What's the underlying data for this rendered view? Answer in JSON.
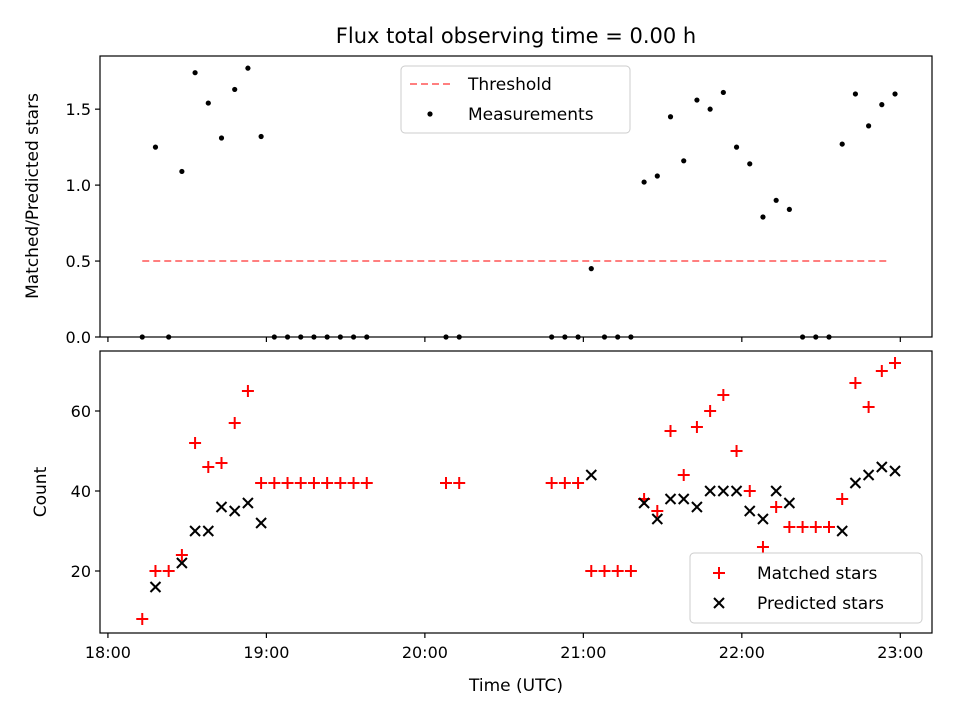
{
  "chart_data": [
    {
      "type": "scatter",
      "title": "Flux total observing time = 0.00 h",
      "xlabel": "",
      "ylabel": "Matched/Predicted stars",
      "ylim": [
        0,
        1.85
      ],
      "yticks": [
        0.0,
        0.5,
        1.0,
        1.5
      ],
      "ytick_labels": [
        "0.0",
        "0.5",
        "1.0",
        "1.5"
      ],
      "xlim_hours": [
        17.95,
        23.2
      ],
      "legend": {
        "placement": "top-center",
        "entries": [
          {
            "label": "Threshold",
            "color": "#ff7f7f",
            "marker": "dashed-line"
          },
          {
            "label": "Measurements",
            "color": "#000000",
            "marker": "dot"
          }
        ]
      },
      "threshold": {
        "name": "Threshold",
        "value": 0.5,
        "x_start": "18:13",
        "x_end": "22:55",
        "color": "#ff7f7f"
      },
      "series": [
        {
          "name": "Measurements",
          "color": "#000000",
          "points": [
            [
              "18:13",
              0
            ],
            [
              "18:18",
              1.25
            ],
            [
              "18:23",
              0
            ],
            [
              "18:28",
              1.09
            ],
            [
              "18:33",
              1.74
            ],
            [
              "18:38",
              1.54
            ],
            [
              "18:43",
              1.31
            ],
            [
              "18:48",
              1.63
            ],
            [
              "18:53",
              1.77
            ],
            [
              "18:58",
              1.32
            ],
            [
              "19:03",
              0
            ],
            [
              "19:08",
              0
            ],
            [
              "19:13",
              0
            ],
            [
              "19:18",
              0
            ],
            [
              "19:23",
              0
            ],
            [
              "19:28",
              0
            ],
            [
              "19:33",
              0
            ],
            [
              "19:38",
              0
            ],
            [
              "20:08",
              0
            ],
            [
              "20:13",
              0
            ],
            [
              "20:48",
              0
            ],
            [
              "20:53",
              0
            ],
            [
              "20:58",
              0
            ],
            [
              "21:03",
              0.45
            ],
            [
              "21:08",
              0
            ],
            [
              "21:13",
              0
            ],
            [
              "21:18",
              0
            ],
            [
              "21:23",
              1.02
            ],
            [
              "21:28",
              1.06
            ],
            [
              "21:33",
              1.45
            ],
            [
              "21:38",
              1.16
            ],
            [
              "21:43",
              1.56
            ],
            [
              "21:48",
              1.5
            ],
            [
              "21:53",
              1.61
            ],
            [
              "21:58",
              1.25
            ],
            [
              "22:03",
              1.14
            ],
            [
              "22:08",
              0.79
            ],
            [
              "22:13",
              0.9
            ],
            [
              "22:18",
              0.84
            ],
            [
              "22:23",
              0
            ],
            [
              "22:28",
              0
            ],
            [
              "22:33",
              0
            ],
            [
              "22:38",
              1.27
            ],
            [
              "22:43",
              1.6
            ],
            [
              "22:48",
              1.39
            ],
            [
              "22:53",
              1.53
            ],
            [
              "22:58",
              1.6
            ]
          ]
        }
      ]
    },
    {
      "type": "scatter",
      "title": "",
      "xlabel": "Time (UTC)",
      "ylabel": "Count",
      "ylim": [
        4.5,
        75
      ],
      "yticks": [
        20,
        40,
        60
      ],
      "ytick_labels": [
        "20",
        "40",
        "60"
      ],
      "xlim_hours": [
        17.95,
        23.2
      ],
      "xticks": [
        "18:00",
        "19:00",
        "20:00",
        "21:00",
        "22:00",
        "23:00"
      ],
      "legend": {
        "placement": "lower-right",
        "entries": [
          {
            "label": "Matched stars",
            "color": "#ff0000",
            "marker": "plus"
          },
          {
            "label": "Predicted stars",
            "color": "#000000",
            "marker": "x"
          }
        ]
      },
      "series": [
        {
          "name": "Matched stars",
          "color": "#ff0000",
          "points": [
            [
              "18:13",
              8
            ],
            [
              "18:18",
              20
            ],
            [
              "18:23",
              20
            ],
            [
              "18:28",
              24
            ],
            [
              "18:33",
              52
            ],
            [
              "18:38",
              46
            ],
            [
              "18:43",
              47
            ],
            [
              "18:48",
              57
            ],
            [
              "18:53",
              65
            ],
            [
              "18:58",
              42
            ],
            [
              "19:03",
              42
            ],
            [
              "19:08",
              42
            ],
            [
              "19:13",
              42
            ],
            [
              "19:18",
              42
            ],
            [
              "19:23",
              42
            ],
            [
              "19:28",
              42
            ],
            [
              "19:33",
              42
            ],
            [
              "19:38",
              42
            ],
            [
              "20:08",
              42
            ],
            [
              "20:13",
              42
            ],
            [
              "20:48",
              42
            ],
            [
              "20:53",
              42
            ],
            [
              "20:58",
              42
            ],
            [
              "21:03",
              20
            ],
            [
              "21:08",
              20
            ],
            [
              "21:13",
              20
            ],
            [
              "21:18",
              20
            ],
            [
              "21:23",
              38
            ],
            [
              "21:28",
              35
            ],
            [
              "21:33",
              55
            ],
            [
              "21:38",
              44
            ],
            [
              "21:43",
              56
            ],
            [
              "21:48",
              60
            ],
            [
              "21:53",
              64
            ],
            [
              "21:58",
              50
            ],
            [
              "22:03",
              40
            ],
            [
              "22:08",
              26
            ],
            [
              "22:13",
              36
            ],
            [
              "22:18",
              31
            ],
            [
              "22:23",
              31
            ],
            [
              "22:28",
              31
            ],
            [
              "22:33",
              31
            ],
            [
              "22:38",
              38
            ],
            [
              "22:43",
              67
            ],
            [
              "22:48",
              61
            ],
            [
              "22:53",
              70
            ],
            [
              "22:58",
              72
            ]
          ]
        },
        {
          "name": "Predicted stars",
          "color": "#000000",
          "points": [
            [
              "18:18",
              16
            ],
            [
              "18:28",
              22
            ],
            [
              "18:33",
              30
            ],
            [
              "18:38",
              30
            ],
            [
              "18:43",
              36
            ],
            [
              "18:48",
              35
            ],
            [
              "18:53",
              37
            ],
            [
              "18:58",
              32
            ],
            [
              "21:03",
              44
            ],
            [
              "21:23",
              37
            ],
            [
              "21:28",
              33
            ],
            [
              "21:33",
              38
            ],
            [
              "21:38",
              38
            ],
            [
              "21:43",
              36
            ],
            [
              "21:48",
              40
            ],
            [
              "21:53",
              40
            ],
            [
              "21:58",
              40
            ],
            [
              "22:03",
              35
            ],
            [
              "22:08",
              33
            ],
            [
              "22:13",
              40
            ],
            [
              "22:18",
              37
            ],
            [
              "22:38",
              30
            ],
            [
              "22:43",
              42
            ],
            [
              "22:48",
              44
            ],
            [
              "22:53",
              46
            ],
            [
              "22:58",
              45
            ]
          ]
        }
      ]
    }
  ]
}
